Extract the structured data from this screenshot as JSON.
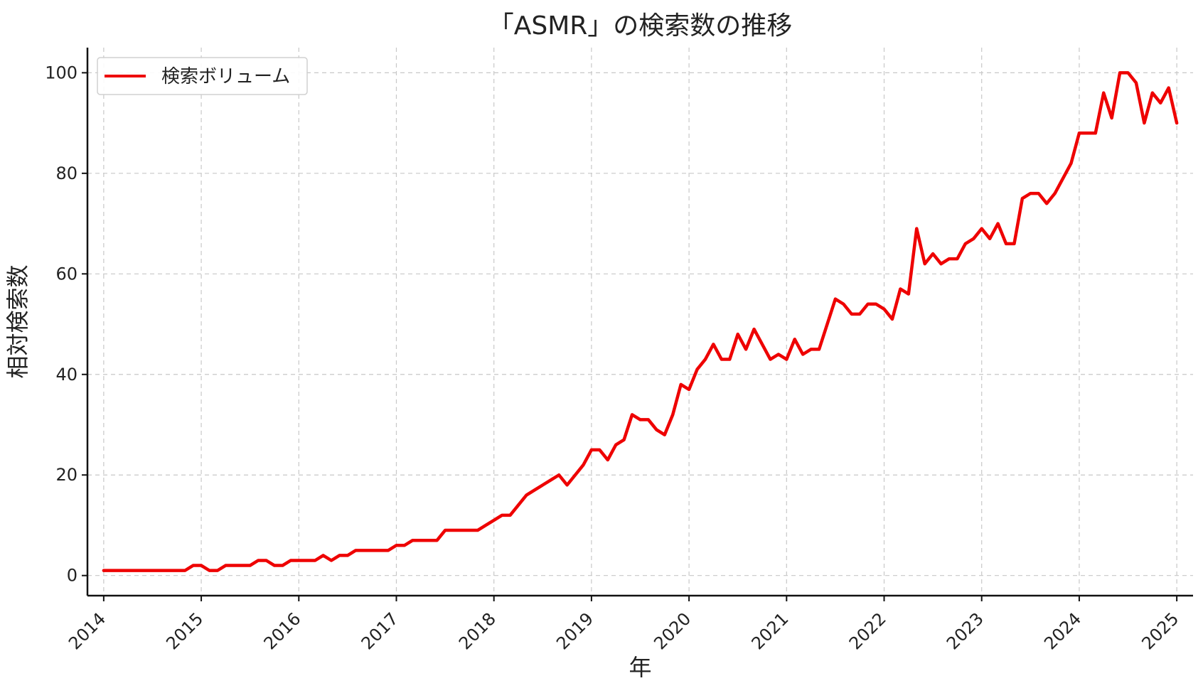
{
  "chart_data": {
    "type": "line",
    "title": "「ASMR」の検索数の推移",
    "xlabel": "年",
    "ylabel": "相対検索数",
    "x_ticks": [
      "2014",
      "2015",
      "2016",
      "2017",
      "2018",
      "2019",
      "2020",
      "2021",
      "2022",
      "2023",
      "2024",
      "2025"
    ],
    "y_ticks": [
      0,
      20,
      40,
      60,
      80,
      100
    ],
    "xlim": [
      "2013-11",
      "2025-03"
    ],
    "ylim": [
      -4,
      105
    ],
    "grid": true,
    "legend_position": "top-left",
    "series": [
      {
        "name": "検索ボリューム",
        "color": "#ee0000",
        "points": [
          [
            "2014-01",
            1
          ],
          [
            "2014-02",
            1
          ],
          [
            "2014-03",
            1
          ],
          [
            "2014-04",
            1
          ],
          [
            "2014-05",
            1
          ],
          [
            "2014-06",
            1
          ],
          [
            "2014-07",
            1
          ],
          [
            "2014-08",
            1
          ],
          [
            "2014-09",
            1
          ],
          [
            "2014-10",
            1
          ],
          [
            "2014-11",
            1
          ],
          [
            "2014-12",
            2
          ],
          [
            "2015-01",
            2
          ],
          [
            "2015-02",
            1
          ],
          [
            "2015-03",
            1
          ],
          [
            "2015-04",
            2
          ],
          [
            "2015-05",
            2
          ],
          [
            "2015-06",
            2
          ],
          [
            "2015-07",
            2
          ],
          [
            "2015-08",
            3
          ],
          [
            "2015-09",
            3
          ],
          [
            "2015-10",
            2
          ],
          [
            "2015-11",
            2
          ],
          [
            "2015-12",
            3
          ],
          [
            "2016-01",
            3
          ],
          [
            "2016-02",
            3
          ],
          [
            "2016-03",
            3
          ],
          [
            "2016-04",
            4
          ],
          [
            "2016-05",
            3
          ],
          [
            "2016-06",
            4
          ],
          [
            "2016-07",
            4
          ],
          [
            "2016-08",
            5
          ],
          [
            "2016-09",
            5
          ],
          [
            "2016-10",
            5
          ],
          [
            "2016-11",
            5
          ],
          [
            "2016-12",
            5
          ],
          [
            "2017-01",
            6
          ],
          [
            "2017-02",
            6
          ],
          [
            "2017-03",
            7
          ],
          [
            "2017-04",
            7
          ],
          [
            "2017-05",
            7
          ],
          [
            "2017-06",
            7
          ],
          [
            "2017-07",
            9
          ],
          [
            "2017-08",
            9
          ],
          [
            "2017-09",
            9
          ],
          [
            "2017-10",
            9
          ],
          [
            "2017-11",
            9
          ],
          [
            "2017-12",
            10
          ],
          [
            "2018-01",
            11
          ],
          [
            "2018-02",
            12
          ],
          [
            "2018-03",
            12
          ],
          [
            "2018-04",
            14
          ],
          [
            "2018-05",
            16
          ],
          [
            "2018-06",
            17
          ],
          [
            "2018-07",
            18
          ],
          [
            "2018-08",
            19
          ],
          [
            "2018-09",
            20
          ],
          [
            "2018-10",
            18
          ],
          [
            "2018-11",
            20
          ],
          [
            "2018-12",
            22
          ],
          [
            "2019-01",
            25
          ],
          [
            "2019-02",
            25
          ],
          [
            "2019-03",
            23
          ],
          [
            "2019-04",
            26
          ],
          [
            "2019-05",
            27
          ],
          [
            "2019-06",
            32
          ],
          [
            "2019-07",
            31
          ],
          [
            "2019-08",
            31
          ],
          [
            "2019-09",
            29
          ],
          [
            "2019-10",
            28
          ],
          [
            "2019-11",
            32
          ],
          [
            "2019-12",
            38
          ],
          [
            "2020-01",
            37
          ],
          [
            "2020-02",
            41
          ],
          [
            "2020-03",
            43
          ],
          [
            "2020-04",
            46
          ],
          [
            "2020-05",
            43
          ],
          [
            "2020-06",
            43
          ],
          [
            "2020-07",
            48
          ],
          [
            "2020-08",
            45
          ],
          [
            "2020-09",
            49
          ],
          [
            "2020-10",
            46
          ],
          [
            "2020-11",
            43
          ],
          [
            "2020-12",
            44
          ],
          [
            "2021-01",
            43
          ],
          [
            "2021-02",
            47
          ],
          [
            "2021-03",
            44
          ],
          [
            "2021-04",
            45
          ],
          [
            "2021-05",
            45
          ],
          [
            "2021-06",
            50
          ],
          [
            "2021-07",
            55
          ],
          [
            "2021-08",
            54
          ],
          [
            "2021-09",
            52
          ],
          [
            "2021-10",
            52
          ],
          [
            "2021-11",
            54
          ],
          [
            "2021-12",
            54
          ],
          [
            "2022-01",
            53
          ],
          [
            "2022-02",
            51
          ],
          [
            "2022-03",
            57
          ],
          [
            "2022-04",
            56
          ],
          [
            "2022-05",
            69
          ],
          [
            "2022-06",
            62
          ],
          [
            "2022-07",
            64
          ],
          [
            "2022-08",
            62
          ],
          [
            "2022-09",
            63
          ],
          [
            "2022-10",
            63
          ],
          [
            "2022-11",
            66
          ],
          [
            "2022-12",
            67
          ],
          [
            "2023-01",
            69
          ],
          [
            "2023-02",
            67
          ],
          [
            "2023-03",
            70
          ],
          [
            "2023-04",
            66
          ],
          [
            "2023-05",
            66
          ],
          [
            "2023-06",
            75
          ],
          [
            "2023-07",
            76
          ],
          [
            "2023-08",
            76
          ],
          [
            "2023-09",
            74
          ],
          [
            "2023-10",
            76
          ],
          [
            "2023-11",
            79
          ],
          [
            "2023-12",
            82
          ],
          [
            "2024-01",
            88
          ],
          [
            "2024-02",
            88
          ],
          [
            "2024-03",
            88
          ],
          [
            "2024-04",
            96
          ],
          [
            "2024-05",
            91
          ],
          [
            "2024-06",
            100
          ],
          [
            "2024-07",
            100
          ],
          [
            "2024-08",
            98
          ],
          [
            "2024-09",
            90
          ],
          [
            "2024-10",
            96
          ],
          [
            "2024-11",
            94
          ],
          [
            "2024-12",
            97
          ],
          [
            "2025-01",
            90
          ]
        ]
      }
    ]
  }
}
